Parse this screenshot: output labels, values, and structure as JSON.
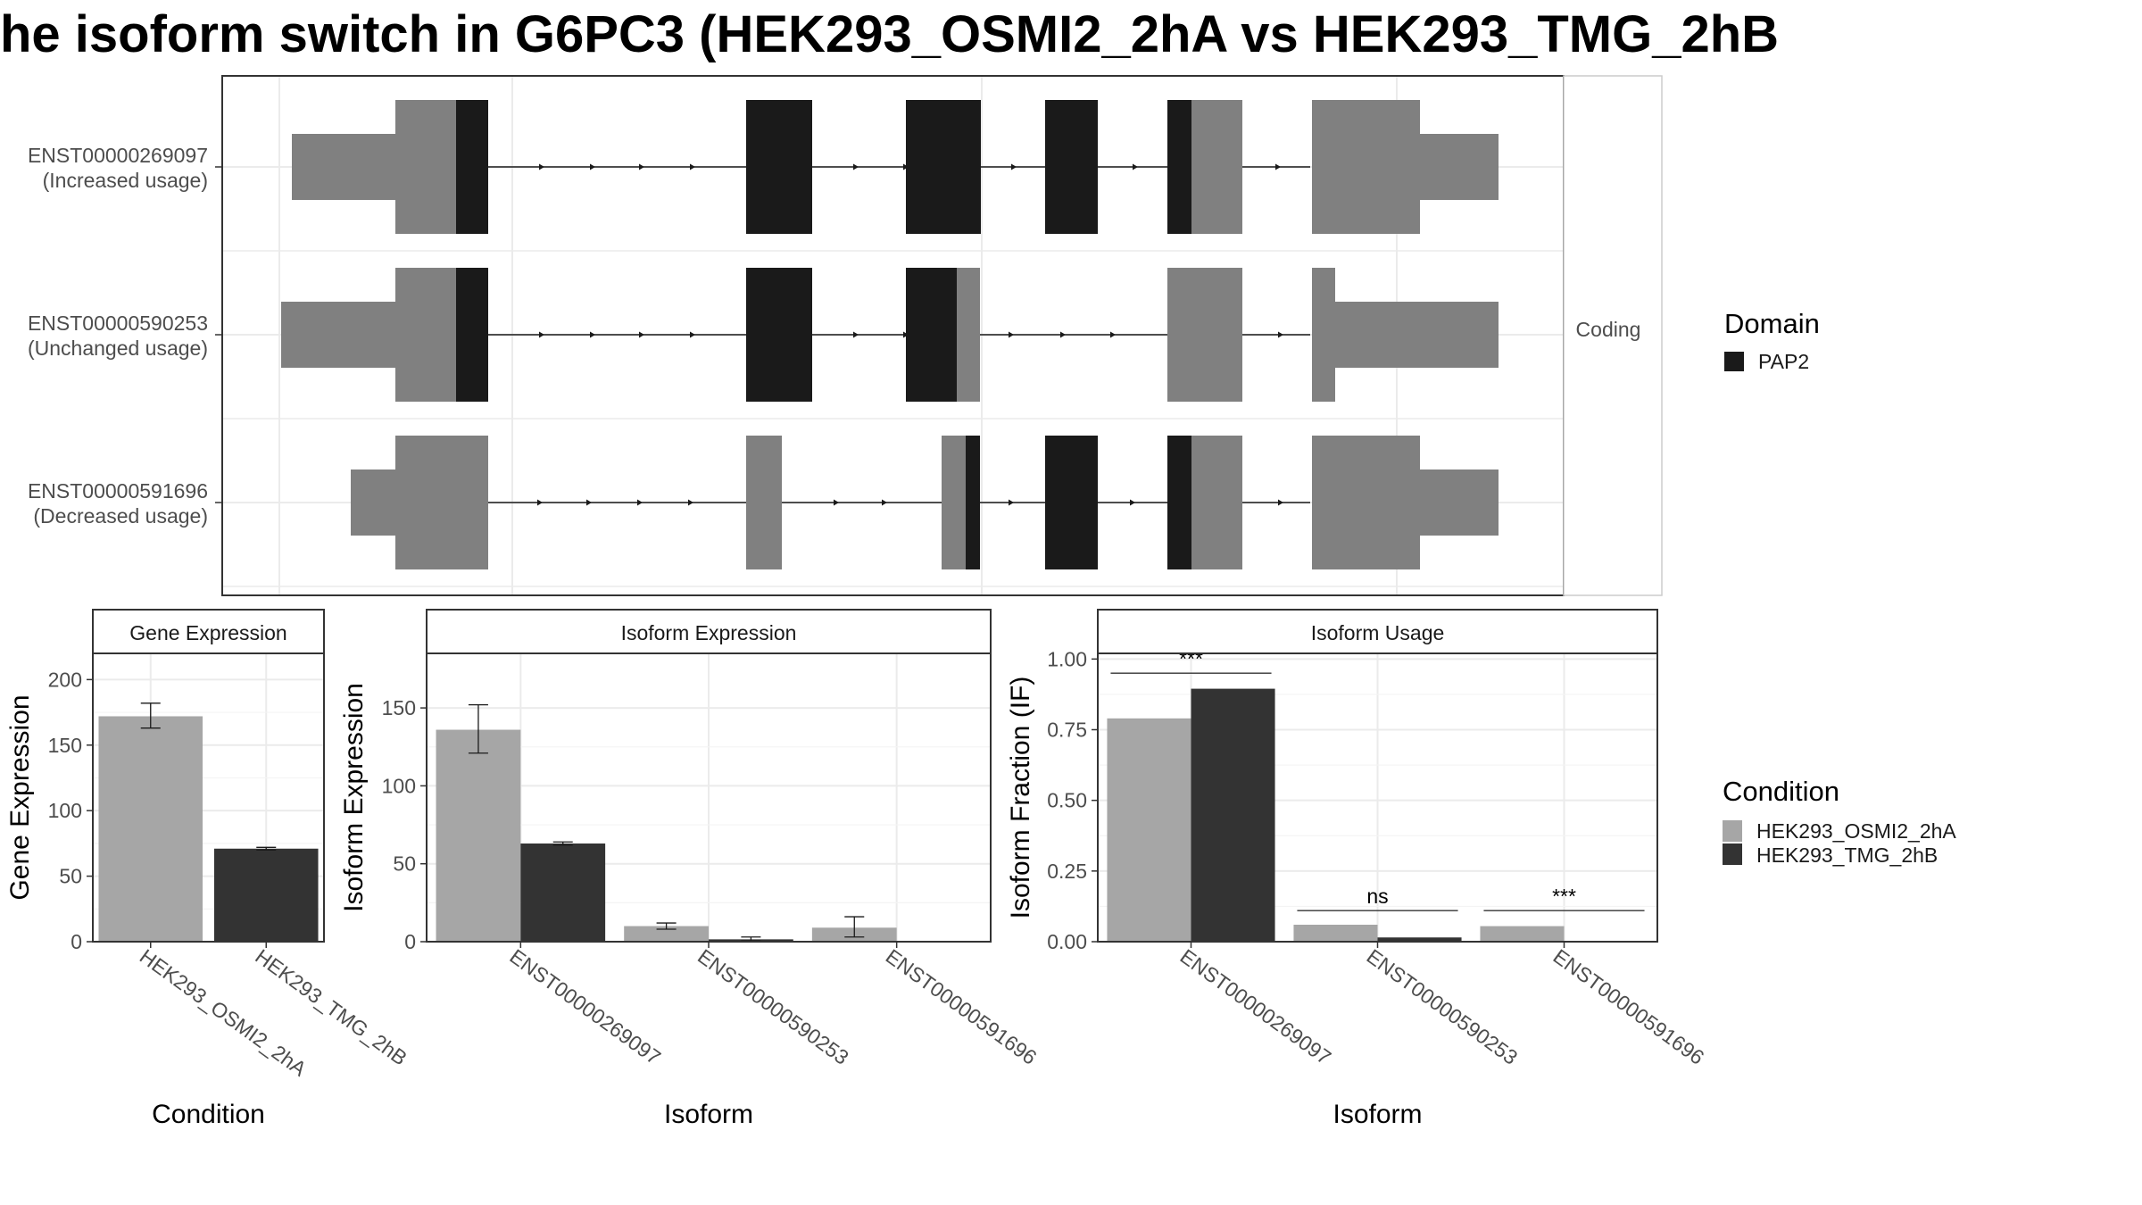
{
  "title": "he isoform switch in G6PC3 (HEK293_OSMI2_2hA vs HEK293_TMG_2hB",
  "colors": {
    "utr": "#808080",
    "domain": "#1a1a1a",
    "condition_a": "#a6a6a6",
    "condition_b": "#333333"
  },
  "structure": {
    "facet_label": "Coding",
    "isoforms": [
      {
        "id": "ENST00000269097",
        "usage": "(Increased usage)"
      },
      {
        "id": "ENST00000590253",
        "usage": "(Unchanged usage)"
      },
      {
        "id": "ENST00000591696",
        "usage": "(Decreased usage)"
      }
    ]
  },
  "legend": {
    "domain": {
      "title": "Domain",
      "items": [
        {
          "label": "PAP2",
          "color": "#1a1a1a"
        }
      ]
    },
    "condition": {
      "title": "Condition",
      "items": [
        {
          "label": "HEK293_OSMI2_2hA",
          "color": "#a6a6a6"
        },
        {
          "label": "HEK293_TMG_2hB",
          "color": "#333333"
        }
      ]
    }
  },
  "chart_data": [
    {
      "type": "bar",
      "title": "Gene Expression",
      "xlabel": "Condition",
      "ylabel": "Gene Expression",
      "ylim": [
        0,
        220
      ],
      "yticks": [
        0,
        50,
        100,
        150,
        200
      ],
      "categories": [
        "HEK293_OSMI2_2hA",
        "HEK293_TMG_2hB"
      ],
      "values": [
        172,
        71
      ],
      "errors": [
        [
          163,
          182
        ],
        [
          70,
          72
        ]
      ],
      "grid": true
    },
    {
      "type": "bar",
      "title": "Isoform Expression",
      "xlabel": "Isoform",
      "ylabel": "Isoform Expression",
      "ylim": [
        0,
        185
      ],
      "yticks": [
        0,
        50,
        100,
        150
      ],
      "categories": [
        "ENST00000269097",
        "ENST00000590253",
        "ENST00000591696"
      ],
      "series": [
        {
          "name": "HEK293_OSMI2_2hA",
          "values": [
            136,
            10,
            9
          ],
          "errors": [
            [
              121,
              152
            ],
            [
              8,
              12
            ],
            [
              3,
              16
            ]
          ]
        },
        {
          "name": "HEK293_TMG_2hB",
          "values": [
            63,
            1.5,
            0
          ],
          "errors": [
            [
              62,
              64
            ],
            [
              0.5,
              3
            ],
            [
              0,
              0
            ]
          ]
        }
      ],
      "grid": true
    },
    {
      "type": "bar",
      "title": "Isoform Usage",
      "xlabel": "Isoform",
      "ylabel": "Isoform Fraction (IF)",
      "ylim": [
        0,
        1.02
      ],
      "yticks": [
        0.0,
        0.25,
        0.5,
        0.75,
        1.0
      ],
      "ytick_labels": [
        "0.00",
        "0.25",
        "0.50",
        "0.75",
        "1.00"
      ],
      "categories": [
        "ENST00000269097",
        "ENST00000590253",
        "ENST00000591696"
      ],
      "series": [
        {
          "name": "HEK293_OSMI2_2hA",
          "values": [
            0.79,
            0.06,
            0.055
          ]
        },
        {
          "name": "HEK293_TMG_2hB",
          "values": [
            0.895,
            0.015,
            0
          ]
        }
      ],
      "significance": [
        "***",
        "ns",
        "***"
      ],
      "grid": true
    }
  ]
}
